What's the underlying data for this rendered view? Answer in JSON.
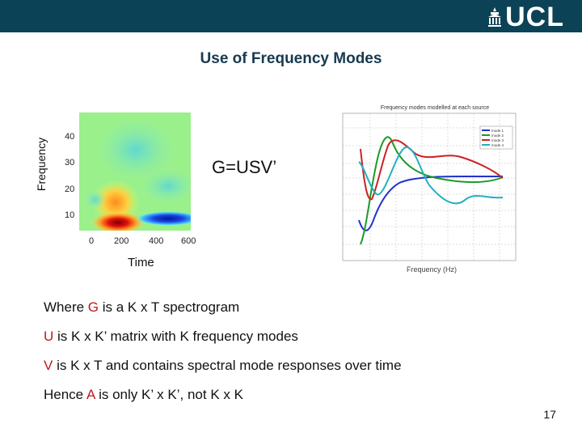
{
  "header": {
    "logo": "UCL"
  },
  "slide": {
    "title": "Use of Frequency Modes",
    "ylabel": "Frequency",
    "xlabel": "Time",
    "formula": "G=USV’",
    "page_number": "17"
  },
  "spectrogram": {
    "y_ticks": [
      "40",
      "30",
      "20",
      "10"
    ],
    "x_ticks": [
      "0",
      "200",
      "400",
      "600"
    ]
  },
  "modes_plot": {
    "title": "Frequency modes modelled at each source",
    "xlabel": "Frequency (Hz)",
    "legend": [
      "mode 1",
      "mode 2",
      "mode 3",
      "mode 4"
    ],
    "colors": [
      "#2233cc",
      "#1a9b2a",
      "#cc2222",
      "#22b0c0"
    ]
  },
  "bullets": [
    {
      "pre": "Where ",
      "var": "G",
      "post": " is a K x T spectrogram"
    },
    {
      "pre": "",
      "var": "U",
      "post": " is K x K’ matrix with K frequency modes"
    },
    {
      "pre": "",
      "var": "V",
      "post": " is K x T and contains spectral mode responses over time"
    },
    {
      "pre": "Hence ",
      "var": "A",
      "post": " is only K’ x K’, not K x K"
    }
  ]
}
